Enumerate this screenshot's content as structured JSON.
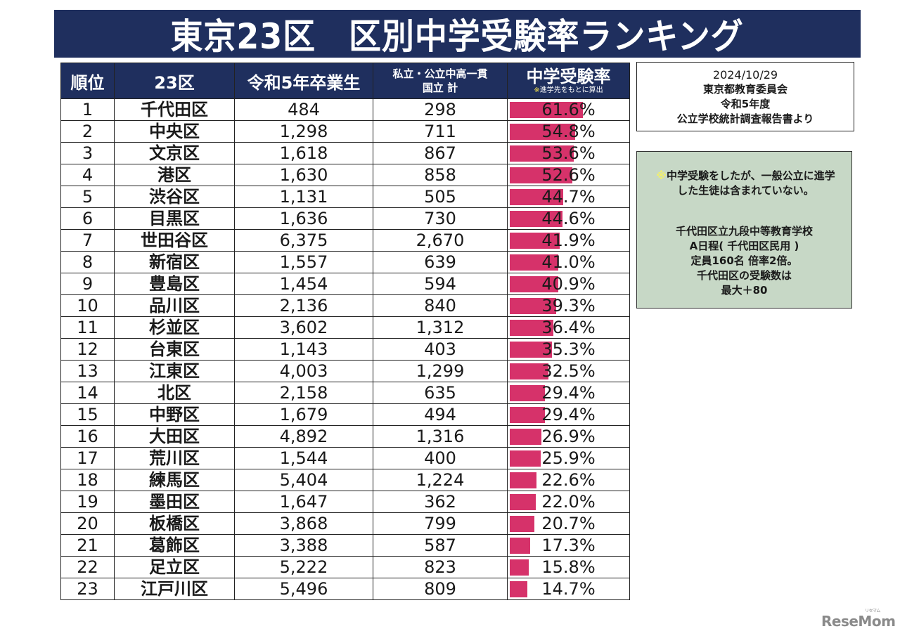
{
  "title": "東京23区　区別中学受験率ランキング",
  "colors": {
    "header_bg": "#1f2f5e",
    "bar": "#d6326a",
    "note_bg": "#c7d8c6"
  },
  "table": {
    "headers": {
      "rank": "順位",
      "ward": "23区",
      "graduates": "令和5年卒業生",
      "private_line1": "私立・公立中高一貫",
      "private_line2": "国立 計",
      "rate": "中学受験率",
      "rate_note_mark": "※",
      "rate_note": "進学先をもとに算出"
    }
  },
  "source_box": {
    "date": "2024/10/29",
    "line1": "東京都教育委員会",
    "line2": "令和5年度",
    "line3": "公立学校統計調査報告書より"
  },
  "note_box": {
    "mark": "※",
    "note_line1": "中学受験をしたが、一般公立に進学",
    "note_line2": "した生徒は含まれていない。",
    "info_line1": "千代田区立九段中等教育学校",
    "info_line2": "A日程( 千代田区民用 )",
    "info_line3": "定員160名 倍率2倍。",
    "info_line4": "千代田区の受験数は",
    "info_line5": "最大＋80"
  },
  "logo": {
    "text": "ReseMom",
    "ruby": "リセマム"
  },
  "chart_data": {
    "type": "table",
    "title": "東京23区　区別中学受験率ランキング",
    "columns": [
      "順位",
      "23区",
      "令和5年卒業生",
      "私立・公立中高一貫 国立 計",
      "中学受験率"
    ],
    "bar_column": "中学受験率",
    "bar_unit": "%",
    "rows": [
      {
        "rank": "1",
        "ward": "千代田区",
        "graduates": "484",
        "private": "298",
        "rate": 61.6,
        "rate_label": "61.6%"
      },
      {
        "rank": "2",
        "ward": "中央区",
        "graduates": "1,298",
        "private": "711",
        "rate": 54.8,
        "rate_label": "54.8%"
      },
      {
        "rank": "3",
        "ward": "文京区",
        "graduates": "1,618",
        "private": "867",
        "rate": 53.6,
        "rate_label": "53.6%"
      },
      {
        "rank": "4",
        "ward": "港区",
        "graduates": "1,630",
        "private": "858",
        "rate": 52.6,
        "rate_label": "52.6%"
      },
      {
        "rank": "5",
        "ward": "渋谷区",
        "graduates": "1,131",
        "private": "505",
        "rate": 44.7,
        "rate_label": "44.7%"
      },
      {
        "rank": "6",
        "ward": "目黒区",
        "graduates": "1,636",
        "private": "730",
        "rate": 44.6,
        "rate_label": "44.6%"
      },
      {
        "rank": "7",
        "ward": "世田谷区",
        "graduates": "6,375",
        "private": "2,670",
        "rate": 41.9,
        "rate_label": "41.9%"
      },
      {
        "rank": "8",
        "ward": "新宿区",
        "graduates": "1,557",
        "private": "639",
        "rate": 41.0,
        "rate_label": "41.0%"
      },
      {
        "rank": "9",
        "ward": "豊島区",
        "graduates": "1,454",
        "private": "594",
        "rate": 40.9,
        "rate_label": "40.9%"
      },
      {
        "rank": "10",
        "ward": "品川区",
        "graduates": "2,136",
        "private": "840",
        "rate": 39.3,
        "rate_label": "39.3%"
      },
      {
        "rank": "11",
        "ward": "杉並区",
        "graduates": "3,602",
        "private": "1,312",
        "rate": 36.4,
        "rate_label": "36.4%"
      },
      {
        "rank": "12",
        "ward": "台東区",
        "graduates": "1,143",
        "private": "403",
        "rate": 35.3,
        "rate_label": "35.3%"
      },
      {
        "rank": "13",
        "ward": "江東区",
        "graduates": "4,003",
        "private": "1,299",
        "rate": 32.5,
        "rate_label": "32.5%"
      },
      {
        "rank": "14",
        "ward": "北区",
        "graduates": "2,158",
        "private": "635",
        "rate": 29.4,
        "rate_label": "29.4%"
      },
      {
        "rank": "15",
        "ward": "中野区",
        "graduates": "1,679",
        "private": "494",
        "rate": 29.4,
        "rate_label": "29.4%"
      },
      {
        "rank": "16",
        "ward": "大田区",
        "graduates": "4,892",
        "private": "1,316",
        "rate": 26.9,
        "rate_label": "26.9%"
      },
      {
        "rank": "17",
        "ward": "荒川区",
        "graduates": "1,544",
        "private": "400",
        "rate": 25.9,
        "rate_label": "25.9%"
      },
      {
        "rank": "18",
        "ward": "練馬区",
        "graduates": "5,404",
        "private": "1,224",
        "rate": 22.6,
        "rate_label": "22.6%"
      },
      {
        "rank": "19",
        "ward": "墨田区",
        "graduates": "1,647",
        "private": "362",
        "rate": 22.0,
        "rate_label": "22.0%"
      },
      {
        "rank": "20",
        "ward": "板橋区",
        "graduates": "3,868",
        "private": "799",
        "rate": 20.7,
        "rate_label": "20.7%"
      },
      {
        "rank": "21",
        "ward": "葛飾区",
        "graduates": "3,388",
        "private": "587",
        "rate": 17.3,
        "rate_label": "17.3%"
      },
      {
        "rank": "22",
        "ward": "足立区",
        "graduates": "5,222",
        "private": "823",
        "rate": 15.8,
        "rate_label": "15.8%"
      },
      {
        "rank": "23",
        "ward": "江戸川区",
        "graduates": "5,496",
        "private": "809",
        "rate": 14.7,
        "rate_label": "14.7%"
      }
    ]
  }
}
